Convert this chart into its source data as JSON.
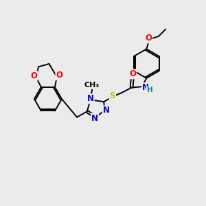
{
  "bg_color": "#ebebeb",
  "atom_colors": {
    "C": "#000000",
    "N": "#0000cc",
    "O": "#ff0000",
    "S": "#ccbb00",
    "H": "#008888"
  },
  "bond_color": "#000000",
  "bond_width": 1.4,
  "font_size": 8.5,
  "figure_size": [
    3.0,
    3.0
  ],
  "dpi": 100
}
